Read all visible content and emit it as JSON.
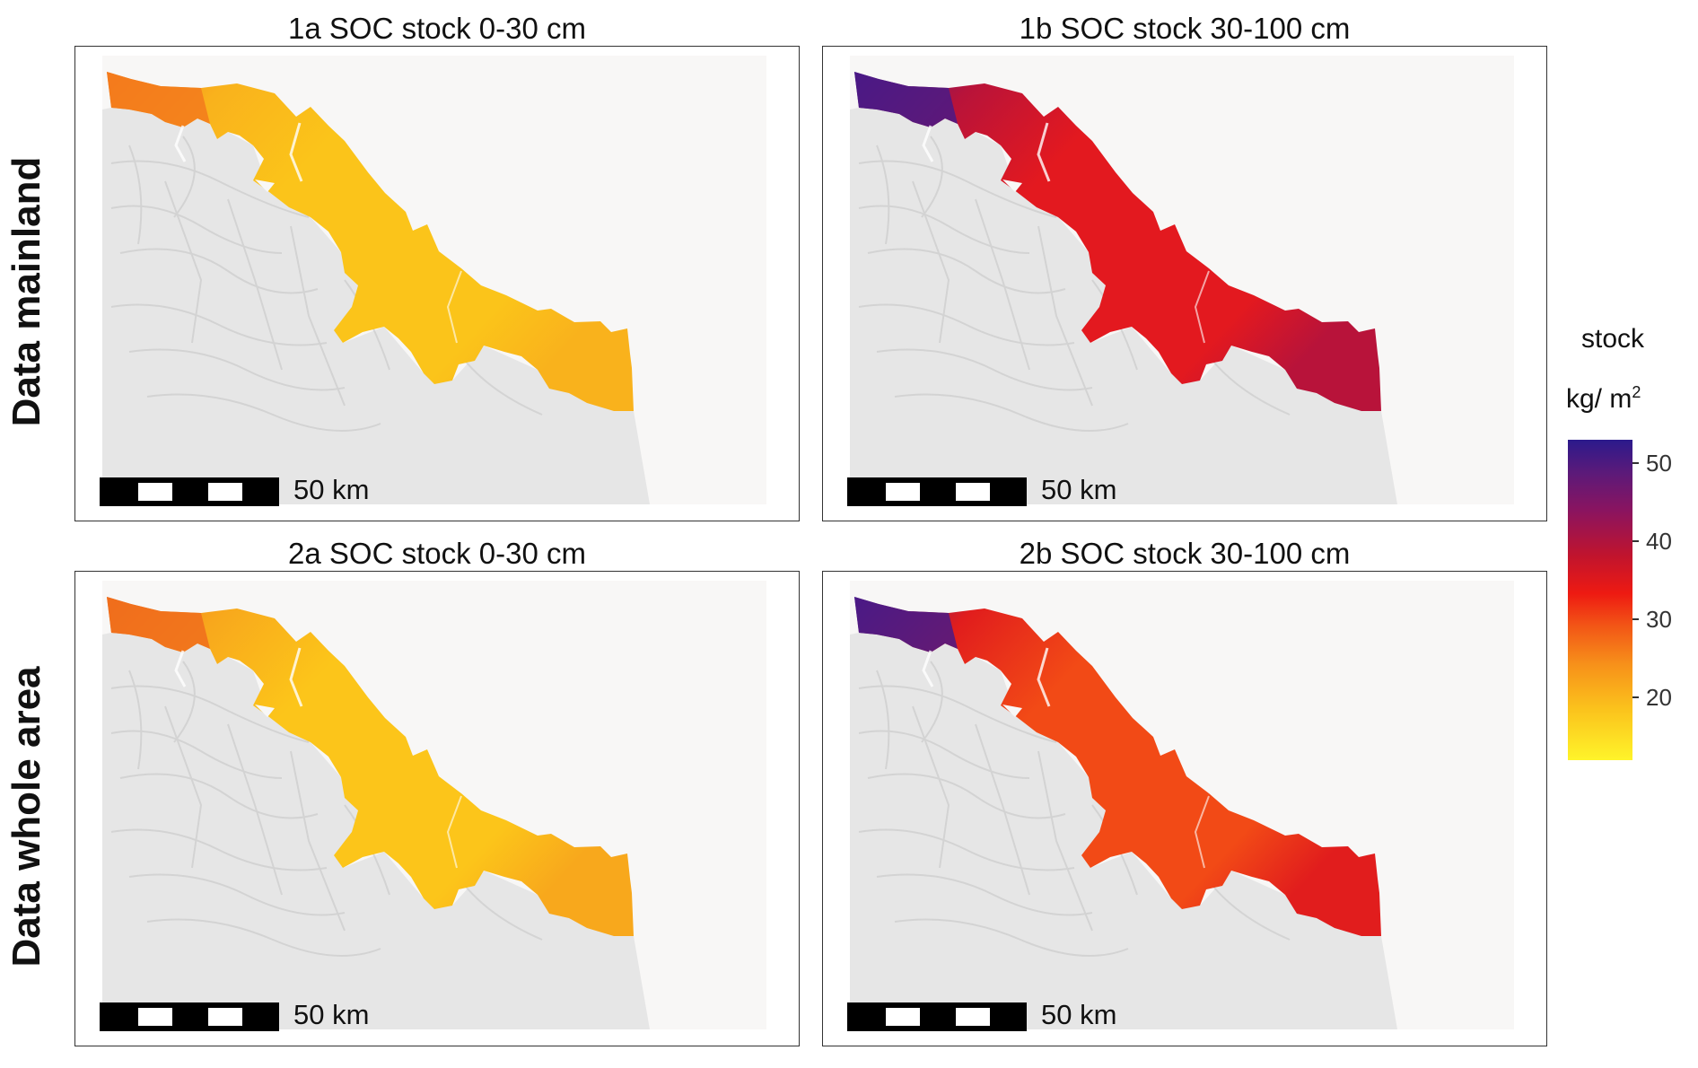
{
  "rows": [
    {
      "label": "Data mainland"
    },
    {
      "label": "Data whole area"
    }
  ],
  "panels": [
    {
      "id": "1a",
      "title": "1a SOC stock 0-30 cm",
      "scalebar": "50 km",
      "palette": "topsoil_mainland"
    },
    {
      "id": "1b",
      "title": "1b SOC stock 30-100 cm",
      "scalebar": "50 km",
      "palette": "subsoil_mainland"
    },
    {
      "id": "2a",
      "title": "2a SOC stock 0-30 cm",
      "scalebar": "50 km",
      "palette": "topsoil_whole"
    },
    {
      "id": "2b",
      "title": "2b SOC stock 30-100 cm",
      "scalebar": "50 km",
      "palette": "subsoil_whole"
    }
  ],
  "legend": {
    "title": "stock",
    "unit_base": "kg/ m",
    "unit_exp": "2",
    "ticks": [
      50,
      40,
      30,
      20
    ],
    "range": [
      12,
      53
    ]
  },
  "colors": {
    "hillshade": "#e6e6e6",
    "background": "#f8f7f6",
    "topsoil_mainland": [
      "#fbc41a",
      "#f9b21c",
      "#f37a1c"
    ],
    "subsoil_mainland": [
      "#e3191f",
      "#b8133a",
      "#4a1a86"
    ],
    "topsoil_whole": [
      "#fcc51a",
      "#f8a81c",
      "#f06d1c"
    ],
    "subsoil_whole": [
      "#f24a16",
      "#e11d1d",
      "#4a1a86"
    ]
  }
}
